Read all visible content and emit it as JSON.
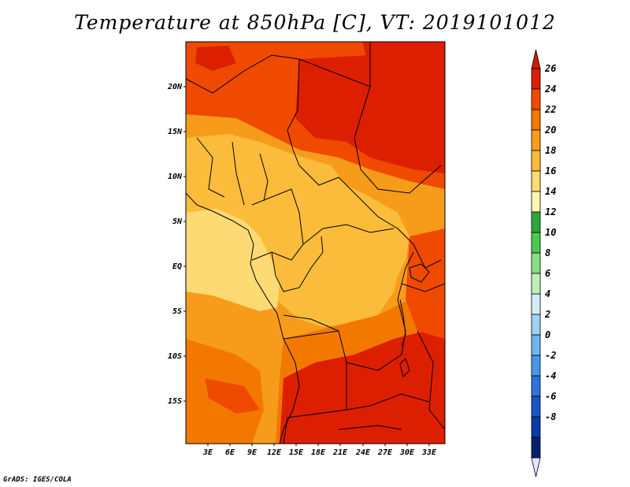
{
  "title": "Temperature at 850hPa [C], VT: 2019101012",
  "credit": "GrADS: IGES/COLA",
  "map": {
    "lat_labels": [
      "20N",
      "15N",
      "10N",
      "5N",
      "EQ",
      "5S",
      "10S",
      "15S"
    ],
    "lon_labels": [
      "3E",
      "6E",
      "9E",
      "12E",
      "15E",
      "18E",
      "21E",
      "24E",
      "27E",
      "30E",
      "33E"
    ],
    "lon_range": [
      0,
      35
    ],
    "lat_range": [
      -20,
      24.5
    ]
  },
  "legend": {
    "levels": [
      "26",
      "24",
      "22",
      "20",
      "18",
      "16",
      "14",
      "12",
      "10",
      "8",
      "6",
      "4",
      "2",
      "0",
      "-2",
      "-4",
      "-6",
      "-8"
    ],
    "colors": [
      "#dc1f00",
      "#ef4a00",
      "#f37800",
      "#f79c1a",
      "#fbbc3c",
      "#fdda74",
      "#fff4b0",
      "#2ea83a",
      "#4bc94d",
      "#86df84",
      "#bdf0b6",
      "#d4ecf6",
      "#9fd2f4",
      "#6eb4ee",
      "#4a95e7",
      "#2c73db",
      "#1a55c8",
      "#0d3aa8",
      "#08206e"
    ],
    "over_color": "#d51a00",
    "under_color": "#e8e6ff"
  },
  "colors": {
    "hot": "#dc1f00",
    "warm": "#ef4a00",
    "orange": "#f37800",
    "light_orange": "#f79c1a",
    "amber": "#fbbc3c",
    "pale": "#fdda74"
  }
}
